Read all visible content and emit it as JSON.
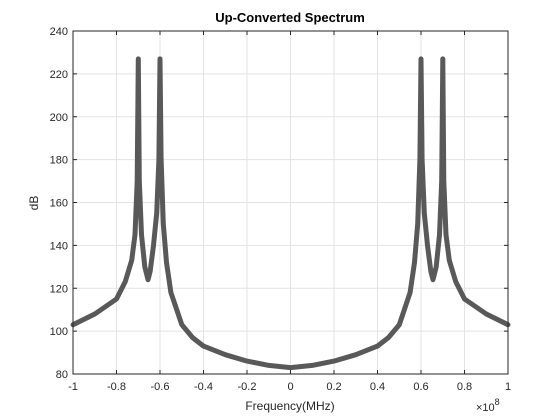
{
  "chart_data": {
    "type": "line",
    "title": "Up-Converted Spectrum",
    "xlabel": "Frequency(MHz)",
    "ylabel": "dB",
    "x_multiplier_label": "×10",
    "x_multiplier_exponent": "8",
    "xlim": [
      -1,
      1
    ],
    "ylim": [
      80,
      240
    ],
    "xticks": [
      -1,
      -0.8,
      -0.6,
      -0.4,
      -0.2,
      0,
      0.2,
      0.4,
      0.6,
      0.8,
      1
    ],
    "xtick_labels": [
      "-1",
      "-0.8",
      "-0.6",
      "-0.4",
      "-0.2",
      "0",
      "0.2",
      "0.4",
      "0.6",
      "0.8",
      "1"
    ],
    "yticks": [
      80,
      100,
      120,
      140,
      160,
      180,
      200,
      220,
      240
    ],
    "ytick_labels": [
      "80",
      "100",
      "120",
      "140",
      "160",
      "180",
      "200",
      "220",
      "240"
    ],
    "grid": true,
    "legend": false,
    "series": [
      {
        "color": "#595959",
        "x": [
          -1.0,
          -0.9,
          -0.8,
          -0.76,
          -0.73,
          -0.715,
          -0.705,
          -0.7,
          -0.695,
          -0.685,
          -0.67,
          -0.655,
          -0.645,
          -0.63,
          -0.615,
          -0.605,
          -0.6,
          -0.595,
          -0.585,
          -0.57,
          -0.55,
          -0.5,
          -0.45,
          -0.4,
          -0.3,
          -0.2,
          -0.1,
          -0.05,
          0.0,
          0.05,
          0.1,
          0.2,
          0.3,
          0.4,
          0.45,
          0.5,
          0.55,
          0.57,
          0.585,
          0.595,
          0.6,
          0.605,
          0.615,
          0.63,
          0.645,
          0.655,
          0.67,
          0.685,
          0.695,
          0.7,
          0.705,
          0.715,
          0.73,
          0.76,
          0.8,
          0.9,
          1.0
        ],
        "y": [
          103,
          108,
          115,
          123,
          133,
          145,
          170,
          227,
          170,
          145,
          130,
          124,
          128,
          140,
          155,
          180,
          227,
          180,
          150,
          132,
          118,
          103,
          97,
          93,
          89,
          86,
          84,
          83.5,
          83,
          83.5,
          84,
          86,
          89,
          93,
          97,
          103,
          118,
          132,
          150,
          180,
          227,
          180,
          155,
          140,
          128,
          124,
          130,
          145,
          170,
          227,
          170,
          145,
          133,
          123,
          115,
          108,
          103
        ]
      }
    ]
  }
}
